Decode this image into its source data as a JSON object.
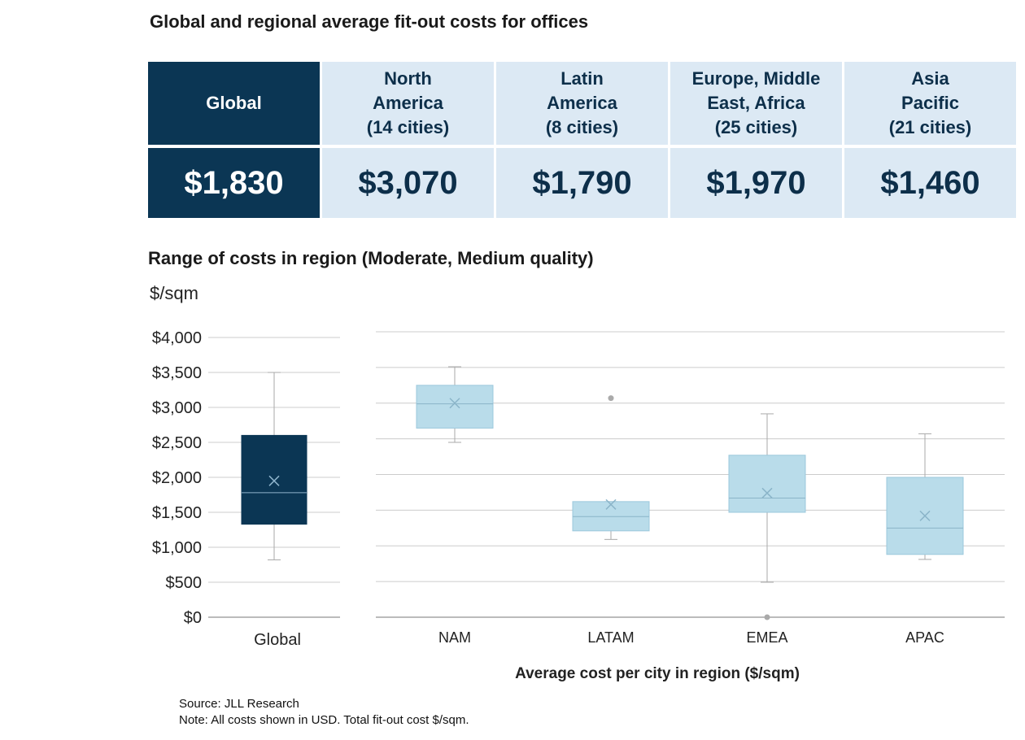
{
  "title": "Global and regional average fit-out costs for offices",
  "summary": {
    "headers": [
      "Global",
      "North America (14 cities)",
      "Latin America (8 cities)",
      "Europe, Middle East, Africa (25 cities)",
      "Asia Pacific (21 cities)"
    ],
    "header_lines": [
      [
        "Global"
      ],
      [
        "North",
        "America",
        "(14 cities)"
      ],
      [
        "Latin",
        "America",
        "(8 cities)"
      ],
      [
        "Europe, Middle",
        "East, Africa",
        "(25 cities)"
      ],
      [
        "Asia",
        "Pacific",
        "(21 cities)"
      ]
    ],
    "values": [
      "$1,830",
      "$3,070",
      "$1,790",
      "$1,970",
      "$1,460"
    ]
  },
  "colors": {
    "dark": "#0b3654",
    "light_cell": "#dce9f4",
    "box_light": "#b9dcea",
    "grid": "#cccccc"
  },
  "source": "Source: JLL Research",
  "note": "Note: All costs shown in USD. Total fit-out cost $/sqm.",
  "chart_data": {
    "type": "box",
    "title": "Range of costs in region (Moderate, Medium quality)",
    "ylabel": "$/sqm",
    "xlabel": "Average cost per city in region ($/sqm)",
    "ylim": [
      0,
      4000
    ],
    "yticks": [
      0,
      500,
      1000,
      1500,
      2000,
      2500,
      3000,
      3500,
      4000
    ],
    "ytick_labels": [
      "$0",
      "$500",
      "$1,000",
      "$1,500",
      "$2,000",
      "$2,500",
      "$3,000",
      "$3,500",
      "$4,000"
    ],
    "global": {
      "label": "Global",
      "min": 820,
      "q1": 1330,
      "median": 1780,
      "q3": 2600,
      "max": 3500,
      "mean": 1950,
      "outliers": []
    },
    "regions": [
      {
        "label": "NAM",
        "min": 2450,
        "q1": 2650,
        "median": 2990,
        "q3": 3250,
        "max": 3510,
        "mean": 3000,
        "outliers": []
      },
      {
        "label": "LATAM",
        "min": 1090,
        "q1": 1210,
        "median": 1410,
        "q3": 1620,
        "max": 1620,
        "mean": 1580,
        "outliers": [
          3070
        ]
      },
      {
        "label": "EMEA",
        "min": 490,
        "q1": 1470,
        "median": 1670,
        "q3": 2270,
        "max": 2850,
        "mean": 1740,
        "outliers": [
          0
        ]
      },
      {
        "label": "APAC",
        "min": 810,
        "q1": 880,
        "median": 1250,
        "q3": 1960,
        "max": 2570,
        "mean": 1420,
        "outliers": []
      }
    ]
  }
}
